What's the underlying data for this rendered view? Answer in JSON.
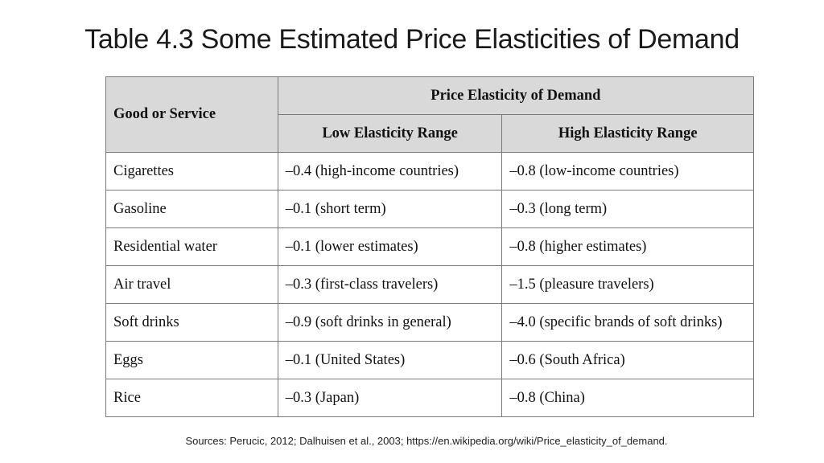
{
  "title": "Table 4.3 Some Estimated Price Elasticities of Demand",
  "table": {
    "header_group": "Price Elasticity of Demand",
    "col_good": "Good or Service",
    "col_low": "Low Elasticity Range",
    "col_high": "High Elasticity Range",
    "rows": [
      {
        "good": "Cigarettes",
        "low": "–0.4 (high-income countries)",
        "high": "–0.8 (low-income countries)"
      },
      {
        "good": "Gasoline",
        "low": "–0.1 (short term)",
        "high": "–0.3 (long term)"
      },
      {
        "good": "Residential water",
        "low": "–0.1 (lower estimates)",
        "high": "–0.8 (higher estimates)"
      },
      {
        "good": "Air travel",
        "low": "–0.3 (first-class travelers)",
        "high": "–1.5 (pleasure travelers)"
      },
      {
        "good": "Soft drinks",
        "low": "–0.9 (soft drinks in general)",
        "high": "–4.0 (specific brands of soft drinks)"
      },
      {
        "good": "Eggs",
        "low": "–0.1 (United States)",
        "high": "–0.6 (South Africa)"
      },
      {
        "good": "Rice",
        "low": "–0.3 (Japan)",
        "high": "–0.8 (China)"
      }
    ]
  },
  "sources": "Sources: Perucic, 2012; Dalhuisen et al., 2003; https://en.wikipedia.org/wiki/Price_elasticity_of_demand."
}
